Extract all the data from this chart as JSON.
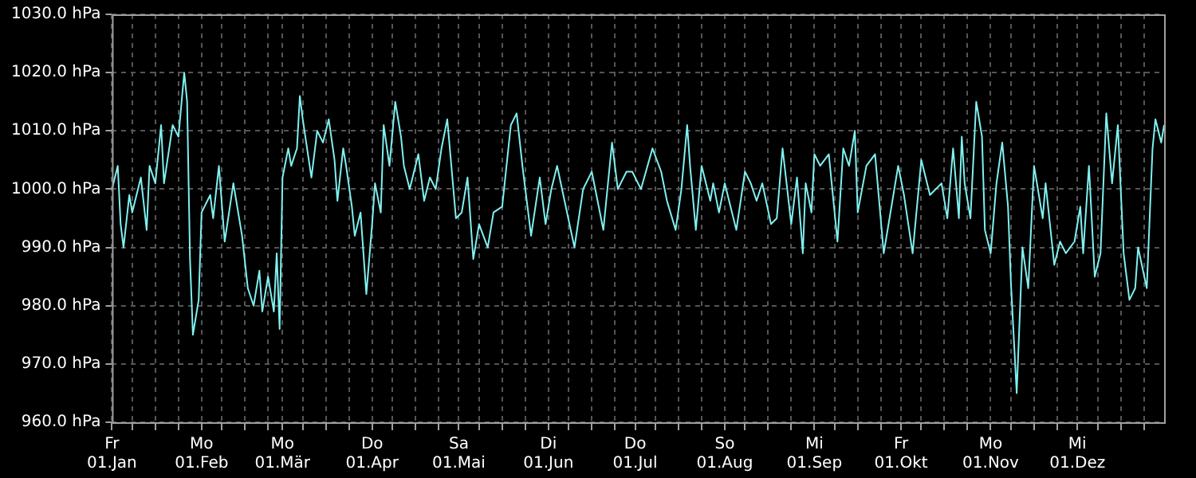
{
  "chart_data": {
    "type": "line",
    "xlim": [
      "--01-01",
      "--12-31"
    ],
    "xticks": [
      {
        "value": "--01-01",
        "label": "Fr 01.Jan"
      },
      {
        "value": "--01-08",
        "label": null
      },
      {
        "value": "--01-16",
        "label": null
      },
      {
        "value": "--01-24",
        "label": null
      },
      {
        "value": "--02-01",
        "label": "Mo 01.Feb"
      },
      {
        "value": "--02-08",
        "label": null
      },
      {
        "value": "--02-16",
        "label": null
      },
      {
        "value": "--02-24",
        "label": null
      },
      {
        "value": "--03-01",
        "label": "Mo 01.Mär"
      },
      {
        "value": "--03-08",
        "label": null
      },
      {
        "value": "--03-16",
        "label": null
      },
      {
        "value": "--03-24",
        "label": null
      },
      {
        "value": "--04-01",
        "label": "Do 01.Apr"
      },
      {
        "value": "--04-08",
        "label": null
      },
      {
        "value": "--04-16",
        "label": null
      },
      {
        "value": "--04-24",
        "label": null
      },
      {
        "value": "--05-01",
        "label": "Sa 01.Mai"
      },
      {
        "value": "--05-08",
        "label": null
      },
      {
        "value": "--05-16",
        "label": null
      },
      {
        "value": "--05-24",
        "label": null
      },
      {
        "value": "--06-01",
        "label": "Di 01.Jun"
      },
      {
        "value": "--06-08",
        "label": null
      },
      {
        "value": "--06-16",
        "label": null
      },
      {
        "value": "--06-24",
        "label": null
      },
      {
        "value": "--07-01",
        "label": "Do 01.Jul"
      },
      {
        "value": "--07-08",
        "label": null
      },
      {
        "value": "--07-16",
        "label": null
      },
      {
        "value": "--07-24",
        "label": null
      },
      {
        "value": "--08-01",
        "label": "So 01.Aug"
      },
      {
        "value": "--08-08",
        "label": null
      },
      {
        "value": "--08-16",
        "label": null
      },
      {
        "value": "--08-24",
        "label": null
      },
      {
        "value": "--09-01",
        "label": "Mi 01.Sep"
      },
      {
        "value": "--09-08",
        "label": null
      },
      {
        "value": "--09-16",
        "label": null
      },
      {
        "value": "--09-24",
        "label": null
      },
      {
        "value": "--10-01",
        "label": "Fr 01.Okt"
      },
      {
        "value": "--10-08",
        "label": null
      },
      {
        "value": "--10-16",
        "label": null
      },
      {
        "value": "--10-24",
        "label": null
      },
      {
        "value": "--11-01",
        "label": "Mo 01.Nov"
      },
      {
        "value": "--11-08",
        "label": null
      },
      {
        "value": "--11-16",
        "label": null
      },
      {
        "value": "--11-24",
        "label": null
      },
      {
        "value": "--12-01",
        "label": "Mi 01.Dez"
      },
      {
        "value": "--12-08",
        "label": null
      },
      {
        "value": "--12-16",
        "label": null
      },
      {
        "value": "--12-24",
        "label": null
      }
    ],
    "ylim": [
      960,
      1030
    ],
    "yticks": [
      {
        "value": 960,
        "label": "960.0 hPa"
      },
      {
        "value": 970,
        "label": "970.0 hPa"
      },
      {
        "value": 980,
        "label": "980.0 hPa"
      },
      {
        "value": 990,
        "label": "990.0 hPa"
      },
      {
        "value": 1000,
        "label": "1000.0 hPa"
      },
      {
        "value": 1010,
        "label": "1010.0 hPa"
      },
      {
        "value": 1020,
        "label": "1020.0 hPa"
      },
      {
        "value": 1030,
        "label": "1030.0 hPa"
      }
    ],
    "grid": true,
    "line_style": "solid",
    "x": [
      "--01-01",
      "--01-03",
      "--01-04",
      "--01-05",
      "--01-07",
      "--01-08",
      "--01-11",
      "--01-13",
      "--01-14",
      "--01-16",
      "--01-18",
      "--01-19",
      "--01-22",
      "--01-24",
      "--01-26",
      "--01-27",
      "--01-28",
      "--01-29",
      "--01-31",
      "--02-01",
      "--02-02",
      "--02-04",
      "--02-05",
      "--02-07",
      "--02-09",
      "--02-12",
      "--02-15",
      "--02-17",
      "--02-19",
      "--02-21",
      "--02-22",
      "--02-24",
      "--02-26",
      "--02-27",
      "--02-28",
      "--03-01",
      "--03-03",
      "--03-04",
      "--03-06",
      "--03-07",
      "--03-08",
      "--03-11",
      "--03-13",
      "--03-15",
      "--03-17",
      "--03-19",
      "--03-20",
      "--03-22",
      "--03-23",
      "--03-25",
      "--03-26",
      "--03-28",
      "--03-30",
      "--04-01",
      "--04-02",
      "--04-04",
      "--04-05",
      "--04-07",
      "--04-09",
      "--04-11",
      "--04-12",
      "--04-14",
      "--04-17",
      "--04-19",
      "--04-21",
      "--04-23",
      "--04-25",
      "--04-27",
      "--04-30",
      "--05-02",
      "--05-04",
      "--05-06",
      "--05-08",
      "--05-11",
      "--05-13",
      "--05-16",
      "--05-19",
      "--05-21",
      "--05-23",
      "--05-26",
      "--05-29",
      "--05-31",
      "--06-02",
      "--06-04",
      "--06-07",
      "--06-10",
      "--06-13",
      "--06-16",
      "--06-18",
      "--06-20",
      "--06-23",
      "--06-25",
      "--06-28",
      "--06-30",
      "--07-03",
      "--07-07",
      "--07-10",
      "--07-12",
      "--07-15",
      "--07-17",
      "--07-19",
      "--07-20",
      "--07-22",
      "--07-24",
      "--07-27",
      "--07-28",
      "--07-30",
      "--08-01",
      "--08-02",
      "--08-05",
      "--08-08",
      "--08-10",
      "--08-12",
      "--08-14",
      "--08-17",
      "--08-19",
      "--08-21",
      "--08-24",
      "--08-26",
      "--08-28",
      "--08-29",
      "--08-31",
      "--09-01",
      "--09-03",
      "--09-06",
      "--09-09",
      "--09-11",
      "--09-13",
      "--09-15",
      "--09-16",
      "--09-19",
      "--09-22",
      "--09-25",
      "--09-27",
      "--09-30",
      "--10-02",
      "--10-05",
      "--10-08",
      "--10-11",
      "--10-15",
      "--10-17",
      "--10-19",
      "--10-21",
      "--10-22",
      "--10-23",
      "--10-25",
      "--10-27",
      "--10-29",
      "--10-30",
      "--11-01",
      "--11-03",
      "--11-05",
      "--11-07",
      "--11-08",
      "--11-10",
      "--11-12",
      "--11-14",
      "--11-16",
      "--11-19",
      "--11-20",
      "--11-23",
      "--11-25",
      "--11-27",
      "--11-30",
      "--12-02",
      "--12-03",
      "--12-05",
      "--12-07",
      "--12-09",
      "--12-11",
      "--12-13",
      "--12-15",
      "--12-17",
      "--12-19",
      "--12-21",
      "--12-22",
      "--12-25",
      "--12-27",
      "--12-28",
      "--12-30",
      "--12-31"
    ],
    "series": [
      {
        "color": "#80f0f0",
        "values": [
          1000,
          1004,
          994,
          990,
          999,
          996,
          1002,
          993,
          1004,
          1001,
          1011,
          1001,
          1011,
          1009,
          1020,
          1015,
          988,
          975,
          981,
          996,
          997,
          999,
          995,
          1004,
          991,
          1001,
          992,
          983,
          980,
          986,
          979,
          985,
          979,
          989,
          976,
          1002,
          1007,
          1004,
          1007,
          1016,
          1012,
          1002,
          1010,
          1008,
          1012,
          1005,
          998,
          1007,
          1004,
          997,
          992,
          996,
          982,
          994,
          1001,
          996,
          1011,
          1004,
          1015,
          1009,
          1004,
          1000,
          1006,
          998,
          1002,
          1000,
          1007,
          1012,
          995,
          996,
          1002,
          988,
          994,
          990,
          996,
          997,
          1011,
          1013,
          1004,
          992,
          1002,
          994,
          1000,
          1004,
          997,
          990,
          1000,
          1003,
          998,
          993,
          1008,
          1000,
          1003,
          1003,
          1000,
          1007,
          1003,
          998,
          993,
          1000,
          1011,
          1004,
          993,
          1004,
          998,
          1001,
          996,
          1001,
          999,
          993,
          1003,
          1001,
          998,
          1001,
          994,
          995,
          1007,
          994,
          1002,
          989,
          1001,
          996,
          1006,
          1004,
          1006,
          991,
          1007,
          1004,
          1010,
          996,
          1004,
          1006,
          989,
          995,
          1004,
          999,
          989,
          1005,
          999,
          1001,
          995,
          1007,
          995,
          1009,
          1001,
          995,
          1015,
          1009,
          993,
          989,
          1001,
          1008,
          997,
          984,
          965,
          990,
          983,
          1004,
          995,
          1001,
          987,
          991,
          989,
          991,
          997,
          989,
          1004,
          985,
          989,
          1013,
          1001,
          1011,
          989,
          981,
          983,
          990,
          983,
          1007,
          1012,
          1008,
          1011
        ]
      }
    ]
  }
}
